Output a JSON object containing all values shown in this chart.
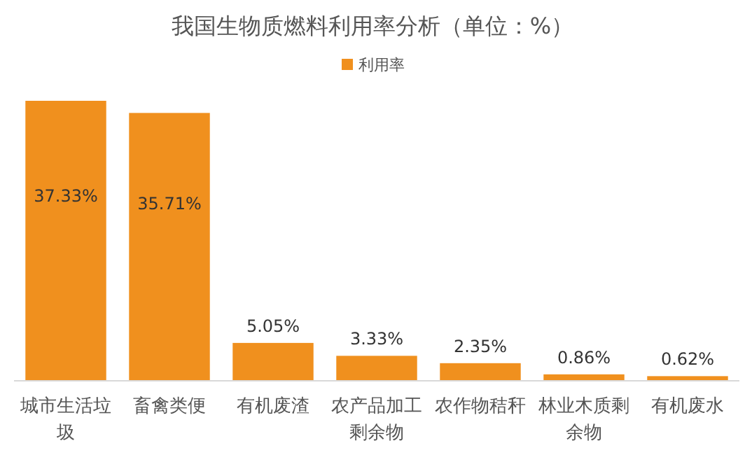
{
  "chart_data": {
    "type": "bar",
    "title": "我国生物质燃料利用率分析（单位：%）",
    "categories": [
      "城市生活垃圾",
      "畜禽类便",
      "有机废渣",
      "农产品加工剩余物",
      "农作物秸秆",
      "林业木质剩余物",
      "有机废水"
    ],
    "series": [
      {
        "name": "利用率",
        "color": "#f0901e",
        "values": [
          37.33,
          35.71,
          5.05,
          3.33,
          2.35,
          0.86,
          0.62
        ],
        "value_labels": [
          "37.33%",
          "35.71%",
          "5.05%",
          "3.33%",
          "2.35%",
          "0.86%",
          "0.62%"
        ]
      }
    ],
    "legend": "top",
    "grid": false
  }
}
